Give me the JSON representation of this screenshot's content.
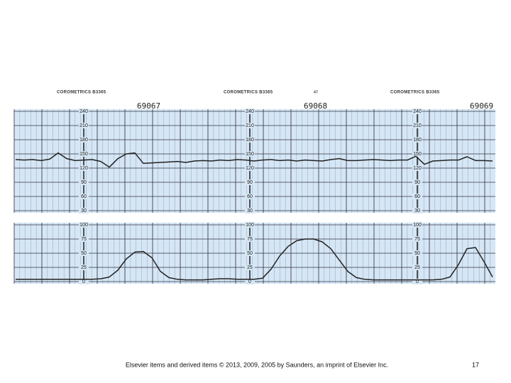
{
  "header": {
    "brand": [
      "COROMETRICS  B3365",
      "COROMETRICS  B3365",
      "COROMETRICS  B3365"
    ],
    "note": "47",
    "pages": [
      "69067",
      "69068",
      "69069"
    ]
  },
  "chart_data": [
    {
      "type": "line",
      "color": "#222222",
      "ylim": [
        30,
        240
      ],
      "yticks": [
        30,
        60,
        90,
        120,
        150,
        180,
        210,
        240
      ],
      "grid": true,
      "categories": [
        null,
        null,
        null,
        null,
        null,
        null,
        null,
        null,
        null,
        null,
        null,
        null,
        null,
        null,
        null,
        null,
        null,
        null,
        null,
        null,
        null,
        null,
        null,
        null,
        null,
        null,
        null,
        null,
        null,
        null,
        null,
        null,
        null,
        null,
        null,
        null,
        null,
        null,
        null,
        null,
        null,
        null,
        null,
        null,
        null,
        null,
        null,
        null,
        null,
        null,
        null,
        null,
        null,
        null,
        null,
        null,
        null
      ],
      "values": [
        138,
        137,
        138,
        136,
        139,
        152,
        140,
        136,
        137,
        138,
        134,
        122,
        140,
        150,
        152,
        130,
        131,
        132,
        133,
        134,
        132,
        135,
        136,
        135,
        137,
        136,
        138,
        137,
        135,
        137,
        138,
        136,
        137,
        135,
        137,
        136,
        135,
        138,
        140,
        136,
        136,
        137,
        138,
        137,
        136,
        137,
        137,
        145,
        128,
        135,
        136,
        137,
        137,
        144,
        136,
        136,
        135
      ]
    },
    {
      "type": "line",
      "color": "#222222",
      "ylim": [
        0,
        100
      ],
      "yticks": [
        0,
        25,
        50,
        75,
        100
      ],
      "grid": true,
      "categories": [
        null,
        null,
        null,
        null,
        null,
        null,
        null,
        null,
        null,
        null,
        null,
        null,
        null,
        null,
        null,
        null,
        null,
        null,
        null,
        null,
        null,
        null,
        null,
        null,
        null,
        null,
        null,
        null,
        null,
        null,
        null,
        null,
        null,
        null,
        null,
        null,
        null,
        null,
        null,
        null,
        null,
        null,
        null,
        null,
        null,
        null,
        null,
        null,
        null,
        null,
        null,
        null,
        null,
        null,
        null,
        null,
        null
      ],
      "values": [
        4,
        4,
        4,
        4,
        4,
        4,
        4,
        4,
        4,
        4,
        5,
        8,
        20,
        40,
        52,
        53,
        42,
        18,
        7,
        4,
        3,
        3,
        3,
        4,
        5,
        5,
        4,
        4,
        4,
        6,
        22,
        45,
        62,
        72,
        75,
        75,
        70,
        58,
        38,
        18,
        7,
        4,
        3,
        3,
        3,
        3,
        3,
        3,
        3,
        3,
        4,
        8,
        30,
        58,
        60,
        35,
        8
      ]
    }
  ],
  "footer": {
    "credit": "Elsevier items and derived items © 2013, 2009, 2005 by Saunders, an imprint of Elsevier Inc.",
    "page": "17"
  }
}
